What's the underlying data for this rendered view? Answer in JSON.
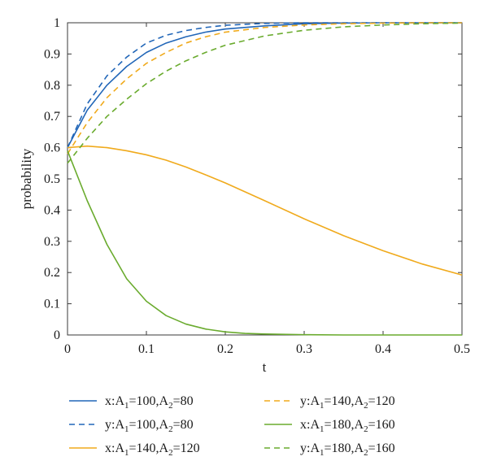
{
  "chart_data": {
    "type": "line",
    "xlabel": "t",
    "ylabel": "probability",
    "xlim": [
      0,
      0.5
    ],
    "ylim": [
      0,
      1
    ],
    "x_ticks": [
      "0",
      "0.1",
      "0.2",
      "0.3",
      "0.4",
      "0.5"
    ],
    "y_ticks": [
      "0",
      "0.1",
      "0.2",
      "0.3",
      "0.4",
      "0.5",
      "0.6",
      "0.7",
      "0.8",
      "0.9",
      "1"
    ],
    "grid": false,
    "legend_position": "bottom",
    "series": [
      {
        "name": "x:A1=100,A2=80",
        "legend_parts": [
          "x:A",
          "1",
          "=100,A",
          "2",
          "=80"
        ],
        "color": "#2166b8",
        "dash": "solid",
        "x": [
          0,
          0.025,
          0.05,
          0.075,
          0.1,
          0.125,
          0.15,
          0.175,
          0.2,
          0.25,
          0.3,
          0.35,
          0.4,
          0.45,
          0.5
        ],
        "y": [
          0.6,
          0.72,
          0.8,
          0.86,
          0.905,
          0.935,
          0.955,
          0.97,
          0.98,
          0.99,
          0.997,
          0.999,
          1.0,
          1.0,
          1.0
        ]
      },
      {
        "name": "y:A1=100,A2=80",
        "legend_parts": [
          "y:A",
          "1",
          "=100,A",
          "2",
          "=80"
        ],
        "color": "#2166b8",
        "dash": "dashed",
        "x": [
          0,
          0.025,
          0.05,
          0.075,
          0.1,
          0.125,
          0.15,
          0.175,
          0.2,
          0.25,
          0.3,
          0.35,
          0.4,
          0.45,
          0.5
        ],
        "y": [
          0.6,
          0.74,
          0.83,
          0.89,
          0.935,
          0.96,
          0.975,
          0.985,
          0.992,
          0.998,
          1.0,
          1.0,
          1.0,
          1.0,
          1.0
        ]
      },
      {
        "name": "x:A1=140,A2=120",
        "legend_parts": [
          "x:A",
          "1",
          "=140,A",
          "2",
          "=120"
        ],
        "color": "#f0aa1c",
        "dash": "solid",
        "x": [
          0,
          0.025,
          0.05,
          0.075,
          0.1,
          0.125,
          0.15,
          0.175,
          0.2,
          0.25,
          0.3,
          0.35,
          0.4,
          0.45,
          0.5
        ],
        "y": [
          0.6,
          0.605,
          0.6,
          0.59,
          0.577,
          0.56,
          0.538,
          0.513,
          0.487,
          0.43,
          0.372,
          0.318,
          0.27,
          0.227,
          0.192
        ]
      },
      {
        "name": "y:A1=140,A2=120",
        "legend_parts": [
          "y:A",
          "1",
          "=140,A",
          "2",
          "=120"
        ],
        "color": "#f0aa1c",
        "dash": "dashed",
        "x": [
          0,
          0.025,
          0.05,
          0.075,
          0.1,
          0.125,
          0.15,
          0.175,
          0.2,
          0.25,
          0.3,
          0.35,
          0.4,
          0.45,
          0.5
        ],
        "y": [
          0.58,
          0.68,
          0.76,
          0.82,
          0.87,
          0.905,
          0.935,
          0.955,
          0.97,
          0.985,
          0.993,
          0.997,
          0.999,
          1.0,
          1.0
        ]
      },
      {
        "name": "x:A1=180,A2=160",
        "legend_parts": [
          "x:A",
          "1",
          "=180,A",
          "2",
          "=160"
        ],
        "color": "#6aab2e",
        "dash": "solid",
        "x": [
          0,
          0.025,
          0.05,
          0.075,
          0.1,
          0.125,
          0.15,
          0.175,
          0.2,
          0.225,
          0.25,
          0.3,
          0.35,
          0.4,
          0.45,
          0.5
        ],
        "y": [
          0.59,
          0.43,
          0.29,
          0.18,
          0.108,
          0.062,
          0.035,
          0.019,
          0.01,
          0.005,
          0.003,
          0.001,
          0.0,
          0.0,
          0.0,
          0.0
        ]
      },
      {
        "name": "y:A1=180,A2=160",
        "legend_parts": [
          "y:A",
          "1",
          "=180,A",
          "2",
          "=160"
        ],
        "color": "#6aab2e",
        "dash": "dashed",
        "x": [
          0,
          0.025,
          0.05,
          0.075,
          0.1,
          0.125,
          0.15,
          0.175,
          0.2,
          0.25,
          0.3,
          0.35,
          0.4,
          0.45,
          0.5
        ],
        "y": [
          0.55,
          0.63,
          0.7,
          0.755,
          0.805,
          0.845,
          0.878,
          0.905,
          0.928,
          0.958,
          0.976,
          0.987,
          0.993,
          0.997,
          0.999
        ]
      }
    ]
  }
}
